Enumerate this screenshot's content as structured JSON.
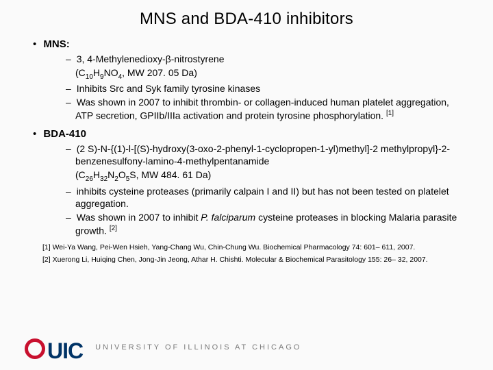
{
  "title": "MNS and BDA-410 inhibitors",
  "section1": {
    "heading": "MNS:",
    "item1a": "3, 4-Methylenedioxy-β-nitrostyrene",
    "item1b_pre": "(C",
    "item1b_s1": "10",
    "item1b_mid1": "H",
    "item1b_s2": "9",
    "item1b_mid2": "NO",
    "item1b_s3": "4",
    "item1b_post": ", MW 207. 05 Da)",
    "item2": "Inhibits Src and Syk family tyrosine kinases",
    "item3": "Was shown in 2007 to inhibit thrombin- or collagen-induced human platelet aggregation, ATP secretion, GPIIb/IIIa activation and protein tyrosine phosphorylation. ",
    "item3_ref": "[1]"
  },
  "section2": {
    "heading": "BDA-410",
    "item1a": "(2 S)-N-{(1)-l-[(S)-hydroxy(3-oxo-2-phenyl-1-cyclopropen-1-yl)methyl]-2 methylpropyl}-2-benzenesulfony-lamino-4-methylpentanamide",
    "item1b_pre": "(C",
    "item1b_s1": "26",
    "item1b_mid1": "H",
    "item1b_s2": "32",
    "item1b_mid2": "N",
    "item1b_s3": "2",
    "item1b_mid3": "O",
    "item1b_s4": "5",
    "item1b_mid4": "S, MW 484. 61 Da)",
    "item2": "inhibits cysteine proteases (primarily calpain I and II) but has not been tested on platelet aggregation.",
    "item3a": "Was shown in 2007 to inhibit ",
    "item3b": "P. falciparum",
    "item3c": " cysteine proteases in blocking Malaria parasite growth. ",
    "item3_ref": "[2]"
  },
  "refs": {
    "r1": "[1] Wei-Ya Wang, Pei-Wen Hsieh, Yang-Chang Wu, Chin-Chung Wu. Biochemical Pharmacology 74: 601– 611, 2007.",
    "r2": "[2] Xuerong Li, Huiqing Chen, Jong-Jin Jeong, Athar H. Chishti. Molecular & Biochemical Parasitology 155: 26– 32, 2007."
  },
  "footer": {
    "logo_text": "UIC",
    "univ": "UNIVERSITY OF ILLINOIS AT CHICAGO"
  },
  "colors": {
    "logo_red": "#c8102e",
    "logo_blue": "#003366",
    "univ_gray": "#7a7a7a",
    "bg": "#fafafa"
  }
}
